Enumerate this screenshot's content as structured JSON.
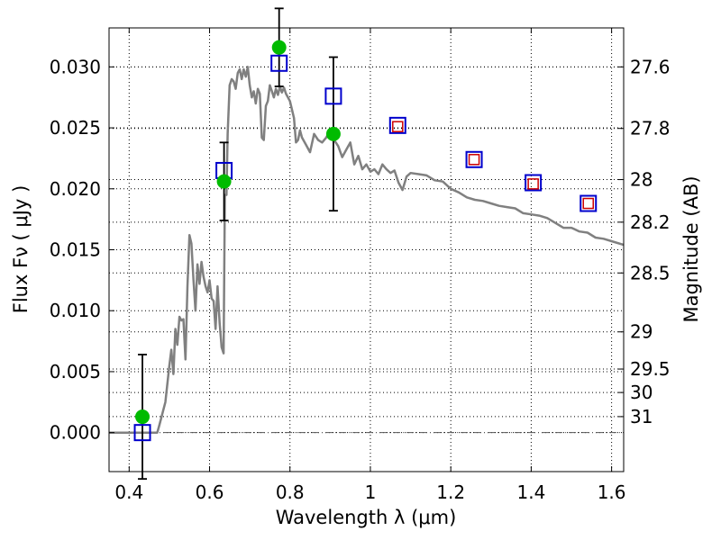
{
  "chart_data": {
    "type": "scatter",
    "xlabel": "Wavelength  λ (μm)",
    "ylabel": "Flux  Fν  ( μJy )",
    "y2label": "Magnitude (AB)",
    "xlim": [
      0.35,
      1.63
    ],
    "ylim": [
      -0.0032,
      0.0332
    ],
    "grid": true,
    "x_ticks": [
      {
        "value": 0.4,
        "label": "0.4"
      },
      {
        "value": 0.6,
        "label": "0.6"
      },
      {
        "value": 0.8,
        "label": "0.8"
      },
      {
        "value": 1.0,
        "label": "1"
      },
      {
        "value": 1.2,
        "label": "1.2"
      },
      {
        "value": 1.4,
        "label": "1.4"
      },
      {
        "value": 1.6,
        "label": "1.6"
      }
    ],
    "y_ticks": [
      {
        "value": 0.0,
        "label": "0.000"
      },
      {
        "value": 0.005,
        "label": "0.005"
      },
      {
        "value": 0.01,
        "label": "0.010"
      },
      {
        "value": 0.015,
        "label": "0.015"
      },
      {
        "value": 0.02,
        "label": "0.020"
      },
      {
        "value": 0.025,
        "label": "0.025"
      },
      {
        "value": 0.03,
        "label": "0.030"
      }
    ],
    "y2_ticks": [
      {
        "value": 27.6,
        "label": "27.6"
      },
      {
        "value": 27.8,
        "label": "27.8"
      },
      {
        "value": 28.0,
        "label": "28"
      },
      {
        "value": 28.2,
        "label": "28.2"
      },
      {
        "value": 28.5,
        "label": "28.5"
      },
      {
        "value": 29.0,
        "label": "29"
      },
      {
        "value": 29.5,
        "label": "29.5"
      },
      {
        "value": 30.0,
        "label": "30"
      },
      {
        "value": 31.0,
        "label": "31"
      }
    ],
    "colors": {
      "model": "#808080",
      "observed": "#00bb00",
      "model_band": "#0000cc",
      "model_band_inner": "#cc0000",
      "errorbar": "#000000",
      "zero_line": "#555555"
    },
    "series": [
      {
        "kind": "line",
        "x": [
          0.35,
          0.47,
          0.475,
          0.49,
          0.5,
          0.505,
          0.51,
          0.515,
          0.52,
          0.525,
          0.53,
          0.535,
          0.54,
          0.545,
          0.55,
          0.555,
          0.56,
          0.565,
          0.57,
          0.575,
          0.58,
          0.585,
          0.59,
          0.595,
          0.6,
          0.605,
          0.61,
          0.615,
          0.62,
          0.625,
          0.63,
          0.635,
          0.638,
          0.642,
          0.645,
          0.65,
          0.655,
          0.66,
          0.665,
          0.67,
          0.675,
          0.68,
          0.685,
          0.69,
          0.695,
          0.7,
          0.705,
          0.71,
          0.715,
          0.72,
          0.725,
          0.73,
          0.735,
          0.74,
          0.745,
          0.75,
          0.755,
          0.76,
          0.765,
          0.77,
          0.775,
          0.78,
          0.785,
          0.79,
          0.8,
          0.81,
          0.815,
          0.82,
          0.825,
          0.83,
          0.84,
          0.85,
          0.86,
          0.87,
          0.88,
          0.89,
          0.9,
          0.91,
          0.92,
          0.93,
          0.94,
          0.95,
          0.96,
          0.97,
          0.98,
          0.99,
          1.0,
          1.01,
          1.02,
          1.03,
          1.04,
          1.05,
          1.06,
          1.07,
          1.08,
          1.09,
          1.1,
          1.12,
          1.14,
          1.16,
          1.18,
          1.2,
          1.22,
          1.24,
          1.26,
          1.28,
          1.3,
          1.32,
          1.34,
          1.36,
          1.38,
          1.4,
          1.42,
          1.44,
          1.46,
          1.48,
          1.5,
          1.52,
          1.54,
          1.56,
          1.58,
          1.6,
          1.63
        ],
        "y": [
          0.0,
          0.0,
          0.0006,
          0.0025,
          0.0055,
          0.0068,
          0.0048,
          0.0085,
          0.0072,
          0.0095,
          0.0092,
          0.0093,
          0.006,
          0.012,
          0.0162,
          0.0155,
          0.0125,
          0.01,
          0.0138,
          0.0122,
          0.014,
          0.0128,
          0.012,
          0.0115,
          0.0125,
          0.011,
          0.0108,
          0.0085,
          0.012,
          0.009,
          0.007,
          0.0065,
          0.0195,
          0.0195,
          0.0245,
          0.0285,
          0.029,
          0.0288,
          0.0282,
          0.0295,
          0.0298,
          0.029,
          0.0298,
          0.0292,
          0.03,
          0.0285,
          0.0275,
          0.028,
          0.027,
          0.0282,
          0.0278,
          0.0242,
          0.024,
          0.0268,
          0.0272,
          0.0285,
          0.028,
          0.0275,
          0.0282,
          0.0277,
          0.0284,
          0.0279,
          0.0283,
          0.0278,
          0.0272,
          0.0258,
          0.0238,
          0.024,
          0.0248,
          0.0242,
          0.0236,
          0.023,
          0.0245,
          0.024,
          0.0238,
          0.0242,
          0.0248,
          0.024,
          0.0235,
          0.0226,
          0.0232,
          0.0238,
          0.022,
          0.0227,
          0.0216,
          0.022,
          0.0214,
          0.0216,
          0.0212,
          0.022,
          0.0216,
          0.0213,
          0.0215,
          0.0205,
          0.0199,
          0.021,
          0.0213,
          0.0212,
          0.0211,
          0.0207,
          0.0206,
          0.02,
          0.0197,
          0.0193,
          0.0191,
          0.019,
          0.0188,
          0.0186,
          0.0185,
          0.0184,
          0.018,
          0.0179,
          0.0178,
          0.0176,
          0.0172,
          0.0168,
          0.0168,
          0.0165,
          0.0164,
          0.016,
          0.0159,
          0.0157,
          0.0154
        ]
      },
      {
        "kind": "squares",
        "x": [
          0.433,
          0.636,
          0.773,
          0.908,
          1.068,
          1.258,
          1.405,
          1.542
        ],
        "y": [
          0.0,
          0.0215,
          0.0303,
          0.0276,
          0.0252,
          0.0224,
          0.0205,
          0.0188
        ]
      },
      {
        "kind": "inner_squares",
        "x": [
          1.068,
          1.258,
          1.405,
          1.542
        ],
        "y": [
          0.0251,
          0.0224,
          0.0204,
          0.0188
        ]
      },
      {
        "kind": "points_with_errors",
        "x": [
          0.433,
          0.636,
          0.773,
          0.908
        ],
        "y": [
          0.0013,
          0.0206,
          0.0316,
          0.0245
        ],
        "yerr": [
          0.0051,
          0.0032,
          0.0032,
          0.0063
        ]
      }
    ]
  }
}
